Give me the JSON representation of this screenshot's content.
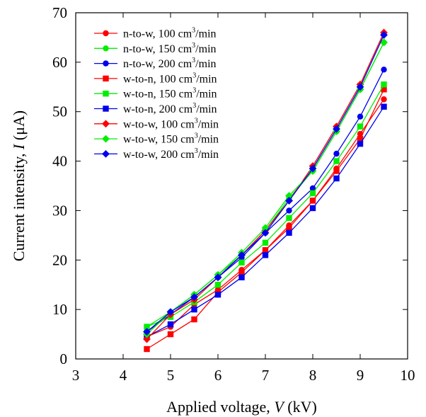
{
  "chart_data": {
    "type": "line",
    "xlabel": "Applied voltage, V (kV)",
    "xlabel_parts": {
      "prefix": "Applied voltage, ",
      "symbol": "V",
      "suffix": " (kV)"
    },
    "ylabel": "Current intensity, I (μA)",
    "ylabel_parts": {
      "prefix": "Current intensity, ",
      "symbol": "I",
      "suffix": " (μA)"
    },
    "xlim": [
      3,
      10
    ],
    "ylim": [
      0,
      70
    ],
    "x_ticks": [
      "3",
      "4",
      "5",
      "6",
      "7",
      "8",
      "9",
      "10"
    ],
    "y_ticks": [
      "0",
      "10",
      "20",
      "30",
      "40",
      "50",
      "60",
      "70"
    ],
    "grid": false,
    "legend_position": "top-left",
    "x": [
      4.5,
      5,
      5.5,
      6,
      6.5,
      7,
      7.5,
      8,
      8.5,
      9,
      9.5
    ],
    "series": [
      {
        "name": "n-to-w, 100 cm3/min",
        "label_main": "n-to-w, 100 cm",
        "label_sup": "3",
        "label_tail": "/min",
        "color": "#ff0000",
        "marker": "circle",
        "values": [
          4.5,
          6.5,
          11.0,
          14.0,
          18.0,
          22.0,
          27.0,
          32.0,
          38.5,
          45.5,
          52.5
        ]
      },
      {
        "name": "n-to-w, 150 cm3/min",
        "label_main": "n-to-w, 150 cm",
        "label_sup": "3",
        "label_tail": "/min",
        "color": "#00ee00",
        "marker": "circle",
        "values": [
          6.5,
          9.5,
          13.0,
          17.0,
          21.0,
          26.0,
          32.5,
          38.0,
          46.0,
          54.5,
          64.0
        ]
      },
      {
        "name": "n-to-w, 200 cm3/min",
        "label_main": "n-to-w, 200 cm",
        "label_sup": "3",
        "label_tail": "/min",
        "color": "#0000ee",
        "marker": "circle",
        "values": [
          5.5,
          9.0,
          12.5,
          16.5,
          20.5,
          25.5,
          30.0,
          34.5,
          41.5,
          49.0,
          58.5
        ]
      },
      {
        "name": "w-to-n, 100 cm3/min",
        "label_main": "w-to-n, 100 cm",
        "label_sup": "3",
        "label_tail": "/min",
        "color": "#ff0000",
        "marker": "square",
        "values": [
          2.0,
          5.0,
          8.0,
          13.5,
          17.5,
          22.0,
          26.5,
          32.0,
          38.0,
          44.5,
          54.5
        ]
      },
      {
        "name": "w-to-n, 150 cm3/min",
        "label_main": "w-to-n, 150 cm",
        "label_sup": "3",
        "label_tail": "/min",
        "color": "#00ee00",
        "marker": "square",
        "values": [
          6.5,
          8.5,
          11.5,
          15.0,
          19.5,
          23.5,
          28.5,
          33.5,
          40.0,
          47.0,
          55.5
        ]
      },
      {
        "name": "w-to-n, 200 cm3/min",
        "label_main": "w-to-n, 200 cm",
        "label_sup": "3",
        "label_tail": "/min",
        "color": "#0000ee",
        "marker": "square",
        "values": [
          4.5,
          7.0,
          10.0,
          13.0,
          16.5,
          21.0,
          25.5,
          30.5,
          36.5,
          43.5,
          51.0
        ]
      },
      {
        "name": "w-to-w, 100 cm3/min",
        "label_main": "w-to-w, 100 cm",
        "label_sup": "3",
        "label_tail": "/min",
        "color": "#ff0000",
        "marker": "diamond",
        "values": [
          4.0,
          9.0,
          12.0,
          16.5,
          21.0,
          26.0,
          32.0,
          39.0,
          47.0,
          55.5,
          66.0
        ]
      },
      {
        "name": "w-to-w, 150 cm3/min",
        "label_main": "w-to-w, 150 cm",
        "label_sup": "3",
        "label_tail": "/min",
        "color": "#00ee00",
        "marker": "diamond",
        "values": [
          5.0,
          9.5,
          13.0,
          17.0,
          21.5,
          26.5,
          33.0,
          38.0,
          46.0,
          54.5,
          64.0
        ]
      },
      {
        "name": "w-to-w, 200 cm3/min",
        "label_main": "w-to-w, 200 cm",
        "label_sup": "3",
        "label_tail": "/min",
        "color": "#0000ee",
        "marker": "diamond",
        "values": [
          5.5,
          9.5,
          12.5,
          16.5,
          21.0,
          25.5,
          32.0,
          38.5,
          46.5,
          55.0,
          65.5
        ]
      }
    ]
  }
}
